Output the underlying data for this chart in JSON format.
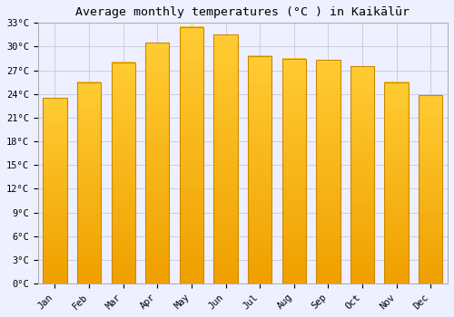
{
  "title": "Average monthly temperatures (°C ) in Kaikālūr",
  "months": [
    "Jan",
    "Feb",
    "Mar",
    "Apr",
    "May",
    "Jun",
    "Jul",
    "Aug",
    "Sep",
    "Oct",
    "Nov",
    "Dec"
  ],
  "temperatures": [
    23.5,
    25.5,
    28.0,
    30.5,
    32.5,
    31.5,
    28.8,
    28.5,
    28.3,
    27.5,
    25.5,
    23.8
  ],
  "bar_color_top": "#FFCC33",
  "bar_color_bottom": "#F0A000",
  "ylim": [
    0,
    33
  ],
  "ytick_values": [
    0,
    3,
    6,
    9,
    12,
    15,
    18,
    21,
    24,
    27,
    30,
    33
  ],
  "ytick_labels": [
    "0°C",
    "3°C",
    "6°C",
    "9°C",
    "12°C",
    "15°C",
    "18°C",
    "21°C",
    "24°C",
    "27°C",
    "30°C",
    "33°C"
  ],
  "background_color": "#EEF0FF",
  "plot_bg_color": "#EEF0FF",
  "grid_color": "#CCCCDD",
  "title_fontsize": 9.5,
  "tick_fontsize": 7.5,
  "bar_edge_color": "#CC8800",
  "bar_edge_width": 0.8,
  "bar_width": 0.7
}
